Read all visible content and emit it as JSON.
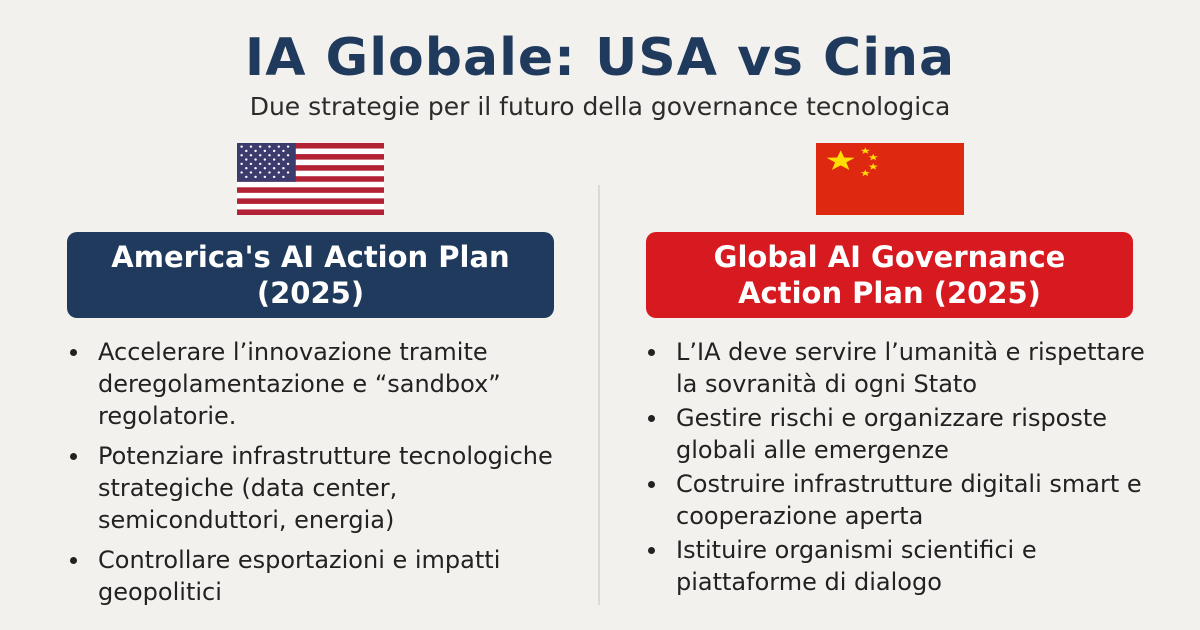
{
  "title": "IA Globale: USA vs Cina",
  "subtitle": "Due strategie per il futuro della governance tecnologica",
  "left": {
    "flag": "usa-flag",
    "header": "America's AI Action Plan (2025)",
    "color": "#1f3a5c",
    "items": [
      "Accelerare l’innovazione tramite deregolamentazione e “sandbox” regolatorie.",
      "Potenziare infrastrutture tecnologiche strategiche (data center, semiconduttori, energia)",
      "Controllare esportazioni e impatti geopolitici"
    ]
  },
  "right": {
    "flag": "china-flag",
    "header": "Global AI Governance Action Plan (2025)",
    "color": "#d71920",
    "items": [
      "L’IA deve servire l’umanità e rispettare la sovranità di ogni Stato",
      "Gestire rischi e organizzare risposte globali alle emergenze",
      "Costruire infrastrutture digitali smart e cooperazione aperta",
      "Istituire organismi scientifici e piattaforme di dialogo"
    ]
  }
}
